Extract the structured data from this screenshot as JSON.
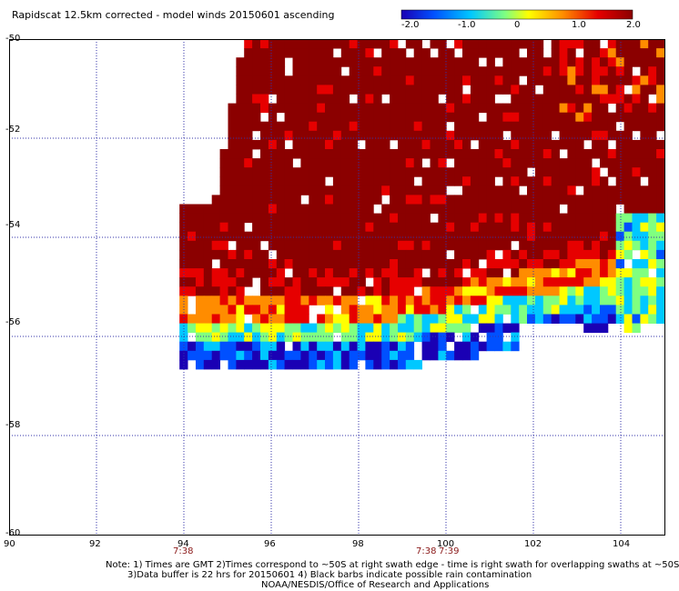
{
  "title": "Rapidscat 12.5km corrected - model winds 20150601 ascending",
  "colorbar": {
    "ticks": [
      "-2.0",
      "-1.0",
      "0",
      "1.0",
      "2.0"
    ],
    "range": [
      -2.0,
      2.0
    ],
    "colors": [
      "#1a00b4",
      "#0050ff",
      "#00c8ff",
      "#80ff80",
      "#ffff00",
      "#ff8c00",
      "#e60000",
      "#8b0000"
    ]
  },
  "map": {
    "lon_labels": [
      "90",
      "92",
      "94",
      "96",
      "98",
      "100",
      "102",
      "104"
    ],
    "lat_labels": [
      "-50",
      "-52",
      "-54",
      "-56",
      "-58",
      "-60"
    ],
    "lon_range": [
      90,
      105
    ],
    "lat_range": [
      -60,
      -50
    ],
    "grid": "dotted",
    "pass_times": [
      "7:38",
      "7:38",
      "7:39"
    ]
  },
  "chart_data": {
    "type": "heatmap",
    "title": "Rapidscat 12.5km corrected - model winds 20150601 ascending",
    "x_ticks": [
      90,
      92,
      94,
      96,
      98,
      100,
      102,
      104
    ],
    "y_ticks": [
      -50,
      -52,
      -54,
      -56,
      -58,
      -60
    ],
    "colorbar_range": [
      -2.0,
      2.0
    ],
    "swath_lon_range": [
      93.9,
      105
    ],
    "swath_lat_range": [
      -56.6,
      -50
    ],
    "dominant_value_north": 2.0,
    "southern_edge_values": [
      -2.0,
      -1.0
    ]
  },
  "footer": {
    "line1": "Note: 1) Times are GMT 2)Times correspond to ~50S at right swath edge - time is right swath for overlapping swaths at ~50S",
    "line2": "3)Data buffer is 22 hrs for 20150601 4) Black barbs indicate possible rain contamination",
    "line3": "NOAA/NESDIS/Office of Research and Applications"
  }
}
